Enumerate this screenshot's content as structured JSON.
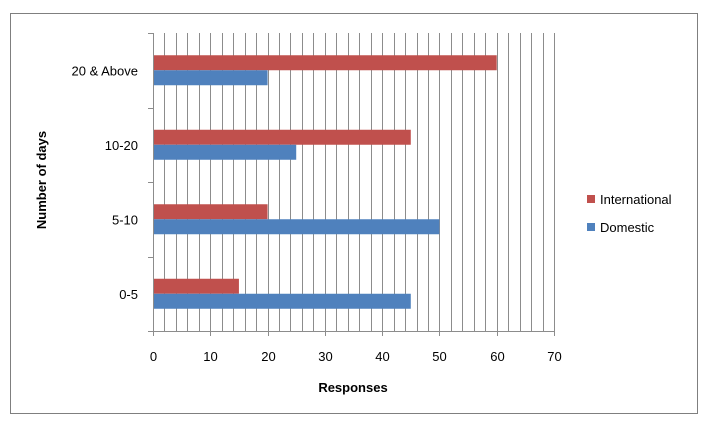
{
  "chart_data": {
    "type": "bar",
    "orientation": "horizontal",
    "title": "",
    "xlabel": "Responses",
    "ylabel": "Number of days",
    "categories": [
      "0-5",
      "5-10",
      "10-20",
      "20 & Above"
    ],
    "series": [
      {
        "name": "International",
        "color": "#c0504d",
        "values": [
          15,
          20,
          45,
          60
        ]
      },
      {
        "name": "Domestic",
        "color": "#4f81bd",
        "values": [
          45,
          50,
          25,
          20
        ]
      }
    ],
    "xlim": [
      0,
      70
    ],
    "xticks": [
      "0",
      "10",
      "20",
      "30",
      "40",
      "50",
      "60",
      "70"
    ],
    "minor_gridlines_vertical": true,
    "legend_position": "right"
  }
}
